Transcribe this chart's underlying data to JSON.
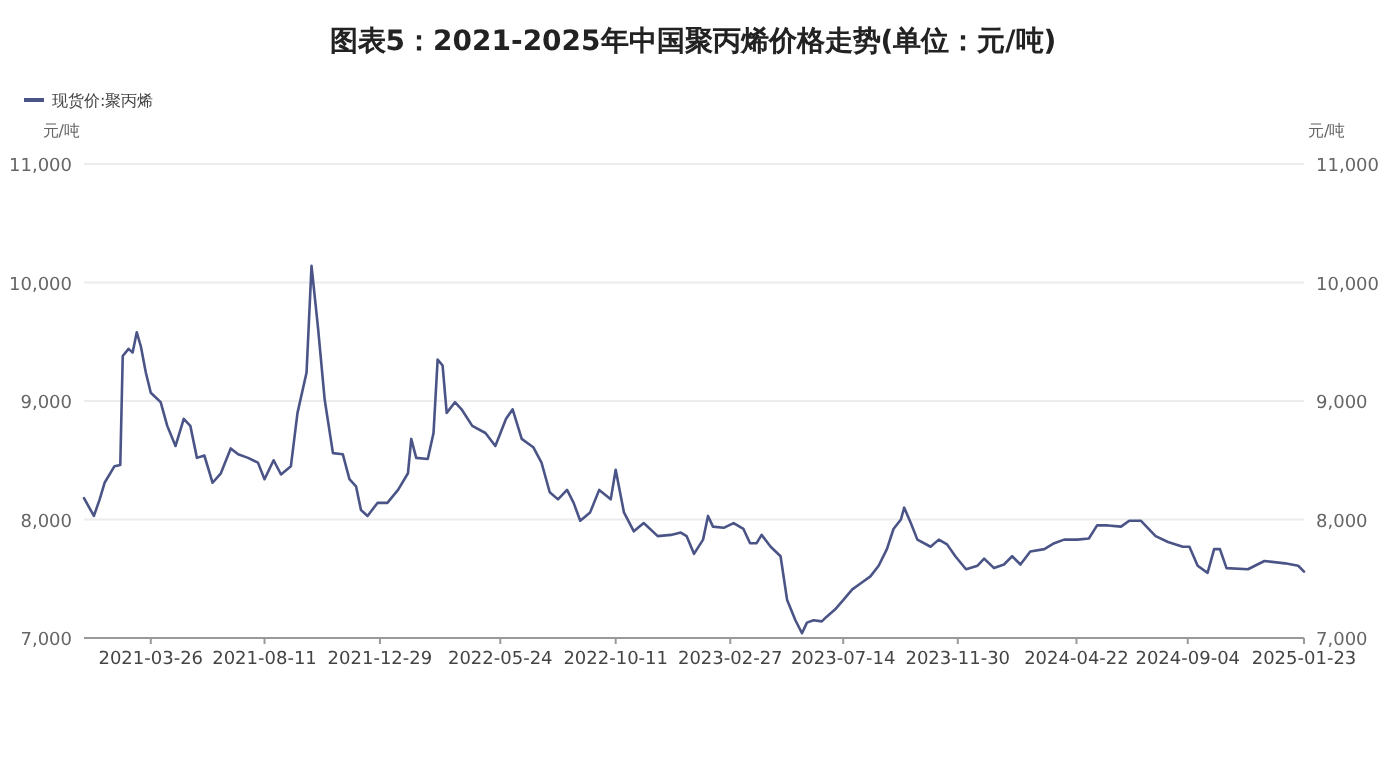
{
  "chart_data": {
    "type": "line",
    "title": "图表5：2021-2025年中国聚丙烯价格走势(单位：元/吨)",
    "ylabel": "元/吨",
    "y2label": "元/吨",
    "x": [
      "2021-01-04",
      "2021-01-16",
      "2021-01-23",
      "2021-01-29",
      "2021-02-10",
      "2021-02-17",
      "2021-02-20",
      "2021-02-27",
      "2021-03-04",
      "2021-03-09",
      "2021-03-14",
      "2021-03-20",
      "2021-03-26",
      "2021-04-07",
      "2021-04-15",
      "2021-04-25",
      "2021-05-05",
      "2021-05-13",
      "2021-05-21",
      "2021-05-30",
      "2021-06-09",
      "2021-06-19",
      "2021-07-01",
      "2021-07-10",
      "2021-07-22",
      "2021-08-03",
      "2021-08-11",
      "2021-08-22",
      "2021-08-31",
      "2021-09-12",
      "2021-09-20",
      "2021-10-01",
      "2021-10-07",
      "2021-10-15",
      "2021-10-23",
      "2021-11-02",
      "2021-11-14",
      "2021-11-22",
      "2021-11-30",
      "2021-12-06",
      "2021-12-14",
      "2021-12-26",
      "2022-01-07",
      "2022-01-20",
      "2022-02-01",
      "2022-02-05",
      "2022-02-11",
      "2022-02-25",
      "2022-03-04",
      "2022-03-09",
      "2022-03-15",
      "2022-03-20",
      "2022-03-30",
      "2022-04-07",
      "2022-04-20",
      "2022-05-06",
      "2022-05-18",
      "2022-05-31",
      "2022-06-08",
      "2022-06-19",
      "2022-07-03",
      "2022-07-13",
      "2022-07-23",
      "2022-08-02",
      "2022-08-13",
      "2022-08-21",
      "2022-08-29",
      "2022-09-10",
      "2022-09-21",
      "2022-10-05",
      "2022-10-11",
      "2022-10-21",
      "2022-11-02",
      "2022-11-14",
      "2022-12-01",
      "2022-12-17",
      "2022-12-29",
      "2023-01-05",
      "2023-01-14",
      "2023-01-25",
      "2023-01-31",
      "2023-02-06",
      "2023-02-19",
      "2023-03-03",
      "2023-03-15",
      "2023-03-23",
      "2023-03-31",
      "2023-04-06",
      "2023-04-17",
      "2023-04-29",
      "2023-05-07",
      "2023-05-17",
      "2023-05-25",
      "2023-05-31",
      "2023-06-08",
      "2023-06-18",
      "2023-06-24",
      "2023-07-04",
      "2023-07-14",
      "2023-07-25",
      "2023-08-04",
      "2023-08-16",
      "2023-08-26",
      "2023-09-05",
      "2023-09-13",
      "2023-09-22",
      "2023-09-26",
      "2023-10-04",
      "2023-10-12",
      "2023-10-28",
      "2023-11-07",
      "2023-11-17",
      "2023-11-27",
      "2023-12-10",
      "2023-12-24",
      "2024-01-01",
      "2024-01-13",
      "2024-01-25",
      "2024-02-04",
      "2024-02-14",
      "2024-02-26",
      "2024-03-14",
      "2024-03-26",
      "2024-04-07",
      "2024-04-23",
      "2024-05-07",
      "2024-05-17",
      "2024-05-30",
      "2024-06-15",
      "2024-06-25",
      "2024-07-09",
      "2024-07-27",
      "2024-08-11",
      "2024-08-29",
      "2024-09-06",
      "2024-09-16",
      "2024-09-28",
      "2024-10-06",
      "2024-10-13",
      "2024-10-21",
      "2024-11-16",
      "2024-12-06",
      "2024-12-31",
      "2025-01-16",
      "2025-01-23"
    ],
    "series": [
      {
        "name": "现货价:聚丙烯",
        "color": "#4b5486",
        "values": [
          8180,
          8030,
          8170,
          8310,
          8450,
          8460,
          9380,
          9440,
          9410,
          9580,
          9460,
          9240,
          9070,
          8990,
          8790,
          8620,
          8850,
          8790,
          8520,
          8540,
          8310,
          8390,
          8600,
          8550,
          8520,
          8480,
          8340,
          8500,
          8380,
          8450,
          8900,
          9240,
          10140,
          9610,
          9010,
          8560,
          8550,
          8340,
          8280,
          8080,
          8030,
          8140,
          8140,
          8250,
          8390,
          8680,
          8520,
          8510,
          8730,
          9350,
          9300,
          8900,
          8990,
          8930,
          8790,
          8730,
          8620,
          8850,
          8930,
          8680,
          8610,
          8480,
          8230,
          8170,
          8250,
          8140,
          7990,
          8060,
          8250,
          8170,
          8420,
          8060,
          7900,
          7970,
          7860,
          7870,
          7890,
          7860,
          7710,
          7830,
          8030,
          7940,
          7930,
          7970,
          7920,
          7800,
          7800,
          7870,
          7770,
          7690,
          7320,
          7150,
          7040,
          7130,
          7150,
          7140,
          7180,
          7240,
          7320,
          7410,
          7460,
          7520,
          7610,
          7750,
          7920,
          8000,
          8100,
          7970,
          7830,
          7770,
          7830,
          7790,
          7690,
          7580,
          7610,
          7670,
          7590,
          7620,
          7690,
          7620,
          7730,
          7750,
          7800,
          7830,
          7830,
          7840,
          7950,
          7950,
          7940,
          7990,
          7990,
          7860,
          7810,
          7770,
          7770,
          7610,
          7550,
          7750,
          7750,
          7590,
          7580,
          7650,
          7630,
          7610,
          7560
        ]
      }
    ],
    "xlim": [
      "2021-01-04",
      "2025-01-23"
    ],
    "xticks": [
      "2021-03-26",
      "2021-08-11",
      "2021-12-29",
      "2022-05-24",
      "2022-10-11",
      "2023-02-27",
      "2023-07-14",
      "2023-11-30",
      "2024-04-22",
      "2024-09-04",
      "2025-01-23"
    ],
    "ylim": [
      7000,
      11000
    ],
    "yticks": [
      {
        "value": 7000,
        "label": "7,000"
      },
      {
        "value": 8000,
        "label": "8,000"
      },
      {
        "value": 9000,
        "label": "9,000"
      },
      {
        "value": 10000,
        "label": "10,000"
      },
      {
        "value": 11000,
        "label": "11,000"
      }
    ],
    "y2lim": [
      7000,
      11000
    ],
    "y2ticks": [
      {
        "value": 7000,
        "label": "7,000"
      },
      {
        "value": 8000,
        "label": "8,000"
      },
      {
        "value": 9000,
        "label": "9,000"
      },
      {
        "value": 10000,
        "label": "10,000"
      },
      {
        "value": 11000,
        "label": "11,000"
      }
    ],
    "grid": "y",
    "legend": "top left"
  }
}
